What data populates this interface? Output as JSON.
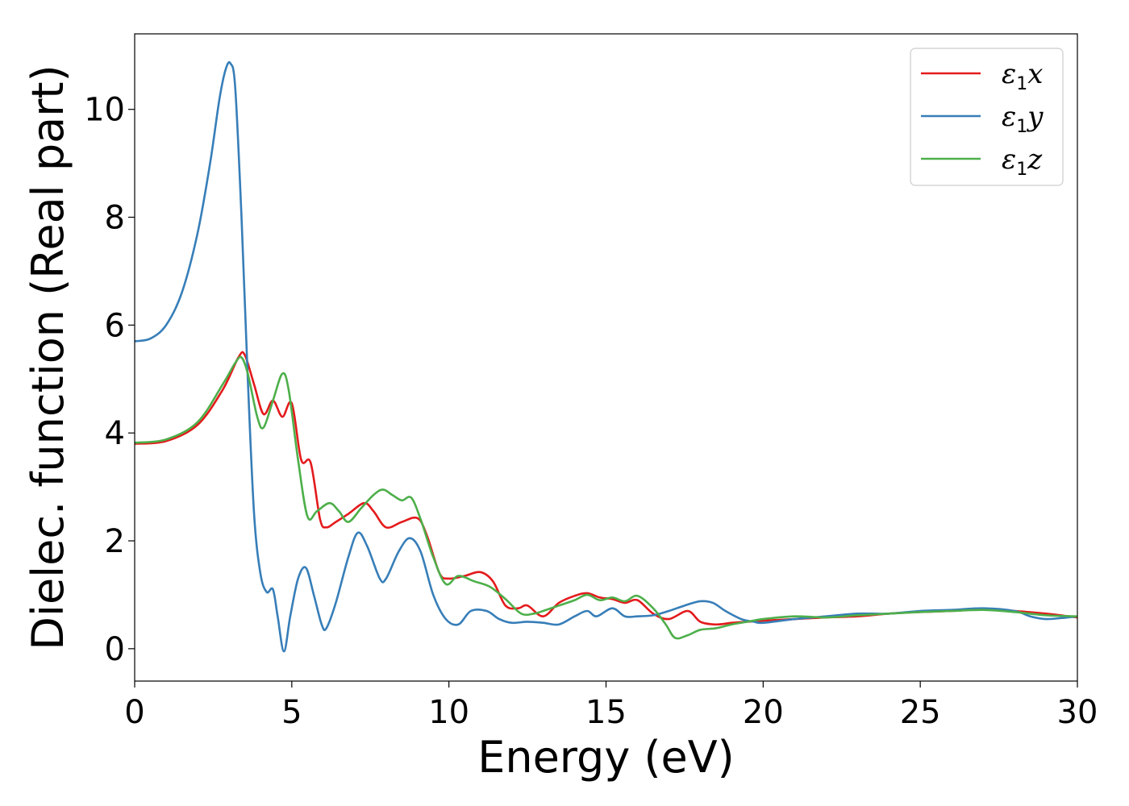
{
  "chart_data": {
    "type": "line",
    "title": "",
    "xlabel": "Energy (eV)",
    "ylabel": "Dielec. function (Real part)",
    "xlim": [
      0,
      30
    ],
    "ylim": [
      -0.6,
      11.4
    ],
    "xticks": [
      0,
      5,
      10,
      15,
      20,
      25,
      30
    ],
    "yticks": [
      0,
      2,
      4,
      6,
      8,
      10
    ],
    "grid": false,
    "legend_position": "top-right",
    "series": [
      {
        "name": "ε1x",
        "symbol": "ε",
        "subscript": "1",
        "component": "x",
        "color": "#e41a1c",
        "points": [
          [
            0,
            3.8
          ],
          [
            1,
            3.85
          ],
          [
            2,
            4.15
          ],
          [
            2.8,
            4.8
          ],
          [
            3.3,
            5.4
          ],
          [
            3.5,
            5.45
          ],
          [
            3.8,
            4.9
          ],
          [
            4.1,
            4.35
          ],
          [
            4.4,
            4.6
          ],
          [
            4.7,
            4.3
          ],
          [
            5.0,
            4.55
          ],
          [
            5.3,
            3.5
          ],
          [
            5.6,
            3.45
          ],
          [
            5.9,
            2.4
          ],
          [
            6.1,
            2.25
          ],
          [
            6.4,
            2.35
          ],
          [
            6.8,
            2.5
          ],
          [
            7.3,
            2.7
          ],
          [
            7.6,
            2.55
          ],
          [
            8.0,
            2.25
          ],
          [
            8.5,
            2.35
          ],
          [
            9.0,
            2.42
          ],
          [
            9.3,
            2.1
          ],
          [
            9.7,
            1.4
          ],
          [
            10.0,
            1.3
          ],
          [
            10.5,
            1.35
          ],
          [
            11.0,
            1.42
          ],
          [
            11.4,
            1.25
          ],
          [
            11.8,
            0.8
          ],
          [
            12.2,
            0.75
          ],
          [
            12.5,
            0.8
          ],
          [
            13.0,
            0.6
          ],
          [
            13.5,
            0.85
          ],
          [
            14.0,
            0.98
          ],
          [
            14.4,
            1.03
          ],
          [
            14.8,
            0.95
          ],
          [
            15.2,
            0.92
          ],
          [
            15.6,
            0.85
          ],
          [
            16.0,
            0.9
          ],
          [
            16.5,
            0.65
          ],
          [
            17.0,
            0.55
          ],
          [
            17.6,
            0.7
          ],
          [
            18.0,
            0.5
          ],
          [
            18.5,
            0.45
          ],
          [
            19.0,
            0.48
          ],
          [
            19.5,
            0.5
          ],
          [
            20,
            0.52
          ],
          [
            21,
            0.55
          ],
          [
            22,
            0.58
          ],
          [
            23,
            0.6
          ],
          [
            24,
            0.65
          ],
          [
            25,
            0.68
          ],
          [
            26,
            0.7
          ],
          [
            27,
            0.73
          ],
          [
            28,
            0.7
          ],
          [
            29,
            0.65
          ],
          [
            30,
            0.58
          ]
        ]
      },
      {
        "name": "ε1y",
        "symbol": "ε",
        "subscript": "1",
        "component": "y",
        "color": "#377eb8",
        "points": [
          [
            0,
            5.7
          ],
          [
            0.5,
            5.75
          ],
          [
            1.0,
            6.0
          ],
          [
            1.5,
            6.6
          ],
          [
            2.0,
            7.7
          ],
          [
            2.4,
            9.0
          ],
          [
            2.7,
            10.2
          ],
          [
            2.9,
            10.75
          ],
          [
            3.05,
            10.85
          ],
          [
            3.2,
            10.4
          ],
          [
            3.4,
            8.0
          ],
          [
            3.6,
            5.0
          ],
          [
            3.8,
            2.5
          ],
          [
            4.0,
            1.4
          ],
          [
            4.2,
            1.05
          ],
          [
            4.4,
            1.1
          ],
          [
            4.55,
            0.6
          ],
          [
            4.75,
            -0.05
          ],
          [
            4.95,
            0.6
          ],
          [
            5.2,
            1.3
          ],
          [
            5.45,
            1.5
          ],
          [
            5.7,
            1.0
          ],
          [
            5.95,
            0.45
          ],
          [
            6.1,
            0.38
          ],
          [
            6.4,
            0.85
          ],
          [
            6.8,
            1.7
          ],
          [
            7.1,
            2.15
          ],
          [
            7.4,
            1.9
          ],
          [
            7.8,
            1.3
          ],
          [
            8.0,
            1.3
          ],
          [
            8.4,
            1.8
          ],
          [
            8.75,
            2.05
          ],
          [
            9.1,
            1.8
          ],
          [
            9.5,
            1.0
          ],
          [
            9.9,
            0.55
          ],
          [
            10.3,
            0.45
          ],
          [
            10.7,
            0.7
          ],
          [
            11.2,
            0.7
          ],
          [
            11.6,
            0.55
          ],
          [
            12.0,
            0.48
          ],
          [
            12.5,
            0.5
          ],
          [
            13.0,
            0.48
          ],
          [
            13.5,
            0.45
          ],
          [
            14.0,
            0.6
          ],
          [
            14.4,
            0.7
          ],
          [
            14.7,
            0.6
          ],
          [
            15.2,
            0.75
          ],
          [
            15.6,
            0.6
          ],
          [
            16.0,
            0.6
          ],
          [
            16.5,
            0.62
          ],
          [
            17.0,
            0.7
          ],
          [
            17.5,
            0.8
          ],
          [
            18.0,
            0.88
          ],
          [
            18.4,
            0.85
          ],
          [
            18.8,
            0.7
          ],
          [
            19.3,
            0.55
          ],
          [
            19.7,
            0.5
          ],
          [
            20,
            0.48
          ],
          [
            21,
            0.55
          ],
          [
            22,
            0.6
          ],
          [
            23,
            0.65
          ],
          [
            24,
            0.65
          ],
          [
            25,
            0.7
          ],
          [
            26,
            0.72
          ],
          [
            27,
            0.75
          ],
          [
            28,
            0.7
          ],
          [
            28.5,
            0.6
          ],
          [
            29,
            0.55
          ],
          [
            29.5,
            0.57
          ],
          [
            30,
            0.6
          ]
        ]
      },
      {
        "name": "ε1z",
        "symbol": "ε",
        "subscript": "1",
        "component": "z",
        "color": "#4daf4a",
        "points": [
          [
            0,
            3.82
          ],
          [
            1,
            3.88
          ],
          [
            2,
            4.2
          ],
          [
            2.8,
            4.9
          ],
          [
            3.2,
            5.3
          ],
          [
            3.4,
            5.4
          ],
          [
            3.6,
            5.1
          ],
          [
            3.9,
            4.3
          ],
          [
            4.1,
            4.1
          ],
          [
            4.4,
            4.6
          ],
          [
            4.7,
            5.1
          ],
          [
            4.9,
            4.8
          ],
          [
            5.2,
            3.5
          ],
          [
            5.5,
            2.45
          ],
          [
            5.8,
            2.55
          ],
          [
            6.2,
            2.7
          ],
          [
            6.5,
            2.55
          ],
          [
            6.8,
            2.35
          ],
          [
            7.2,
            2.6
          ],
          [
            7.6,
            2.85
          ],
          [
            7.9,
            2.95
          ],
          [
            8.2,
            2.85
          ],
          [
            8.5,
            2.75
          ],
          [
            8.8,
            2.8
          ],
          [
            9.1,
            2.4
          ],
          [
            9.5,
            1.7
          ],
          [
            9.9,
            1.2
          ],
          [
            10.3,
            1.35
          ],
          [
            10.8,
            1.25
          ],
          [
            11.3,
            1.15
          ],
          [
            11.8,
            0.92
          ],
          [
            12.3,
            0.65
          ],
          [
            12.7,
            0.65
          ],
          [
            13.0,
            0.7
          ],
          [
            13.5,
            0.8
          ],
          [
            14.0,
            0.9
          ],
          [
            14.4,
            1.0
          ],
          [
            14.8,
            0.9
          ],
          [
            15.2,
            0.95
          ],
          [
            15.6,
            0.88
          ],
          [
            16.0,
            0.98
          ],
          [
            16.5,
            0.75
          ],
          [
            16.9,
            0.45
          ],
          [
            17.2,
            0.2
          ],
          [
            17.6,
            0.25
          ],
          [
            18.0,
            0.35
          ],
          [
            18.5,
            0.38
          ],
          [
            19.0,
            0.45
          ],
          [
            19.5,
            0.5
          ],
          [
            20,
            0.55
          ],
          [
            21,
            0.6
          ],
          [
            22,
            0.58
          ],
          [
            23,
            0.62
          ],
          [
            24,
            0.65
          ],
          [
            25,
            0.68
          ],
          [
            26,
            0.7
          ],
          [
            27,
            0.72
          ],
          [
            28,
            0.68
          ],
          [
            29,
            0.62
          ],
          [
            30,
            0.6
          ]
        ]
      }
    ]
  }
}
